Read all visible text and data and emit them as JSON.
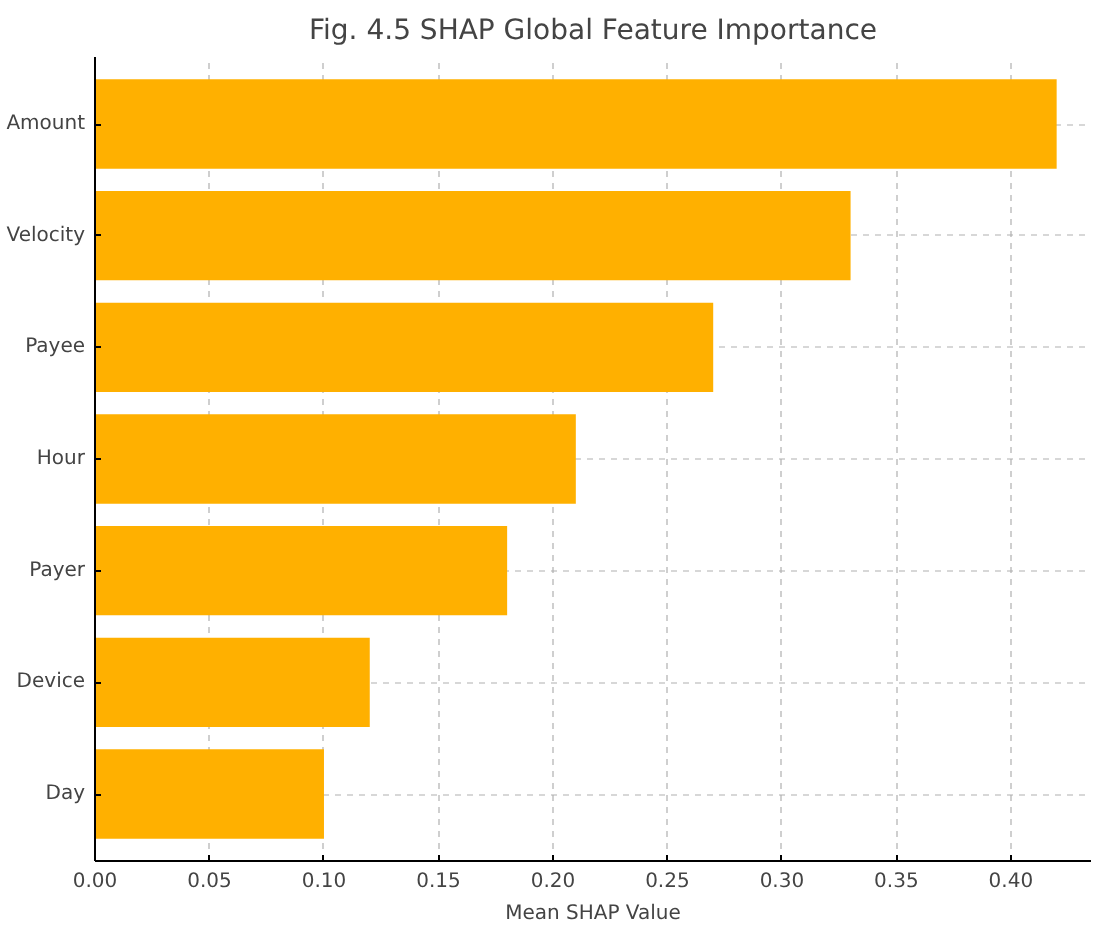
{
  "chart_data": {
    "type": "bar",
    "orientation": "horizontal",
    "title": "Fig. 4.5 SHAP Global Feature Importance",
    "xlabel": "Mean SHAP Value",
    "categories": [
      "Amount",
      "Velocity",
      "Payee",
      "Hour",
      "Payer",
      "Device",
      "Day"
    ],
    "values": [
      0.42,
      0.33,
      0.27,
      0.21,
      0.18,
      0.12,
      0.1
    ],
    "color": "#ffb000",
    "xlim": [
      0,
      0.435
    ],
    "xticks": [
      {
        "value": 0,
        "label": "0.00"
      },
      0.05,
      {
        "value": 0.1,
        "label": "0.10"
      },
      0.15,
      {
        "value": 0.2,
        "label": "0.20"
      },
      0.25,
      {
        "value": 0.3,
        "label": "0.30"
      },
      0.35,
      {
        "value": 0.4,
        "label": "0.40"
      }
    ],
    "grid": true
  }
}
